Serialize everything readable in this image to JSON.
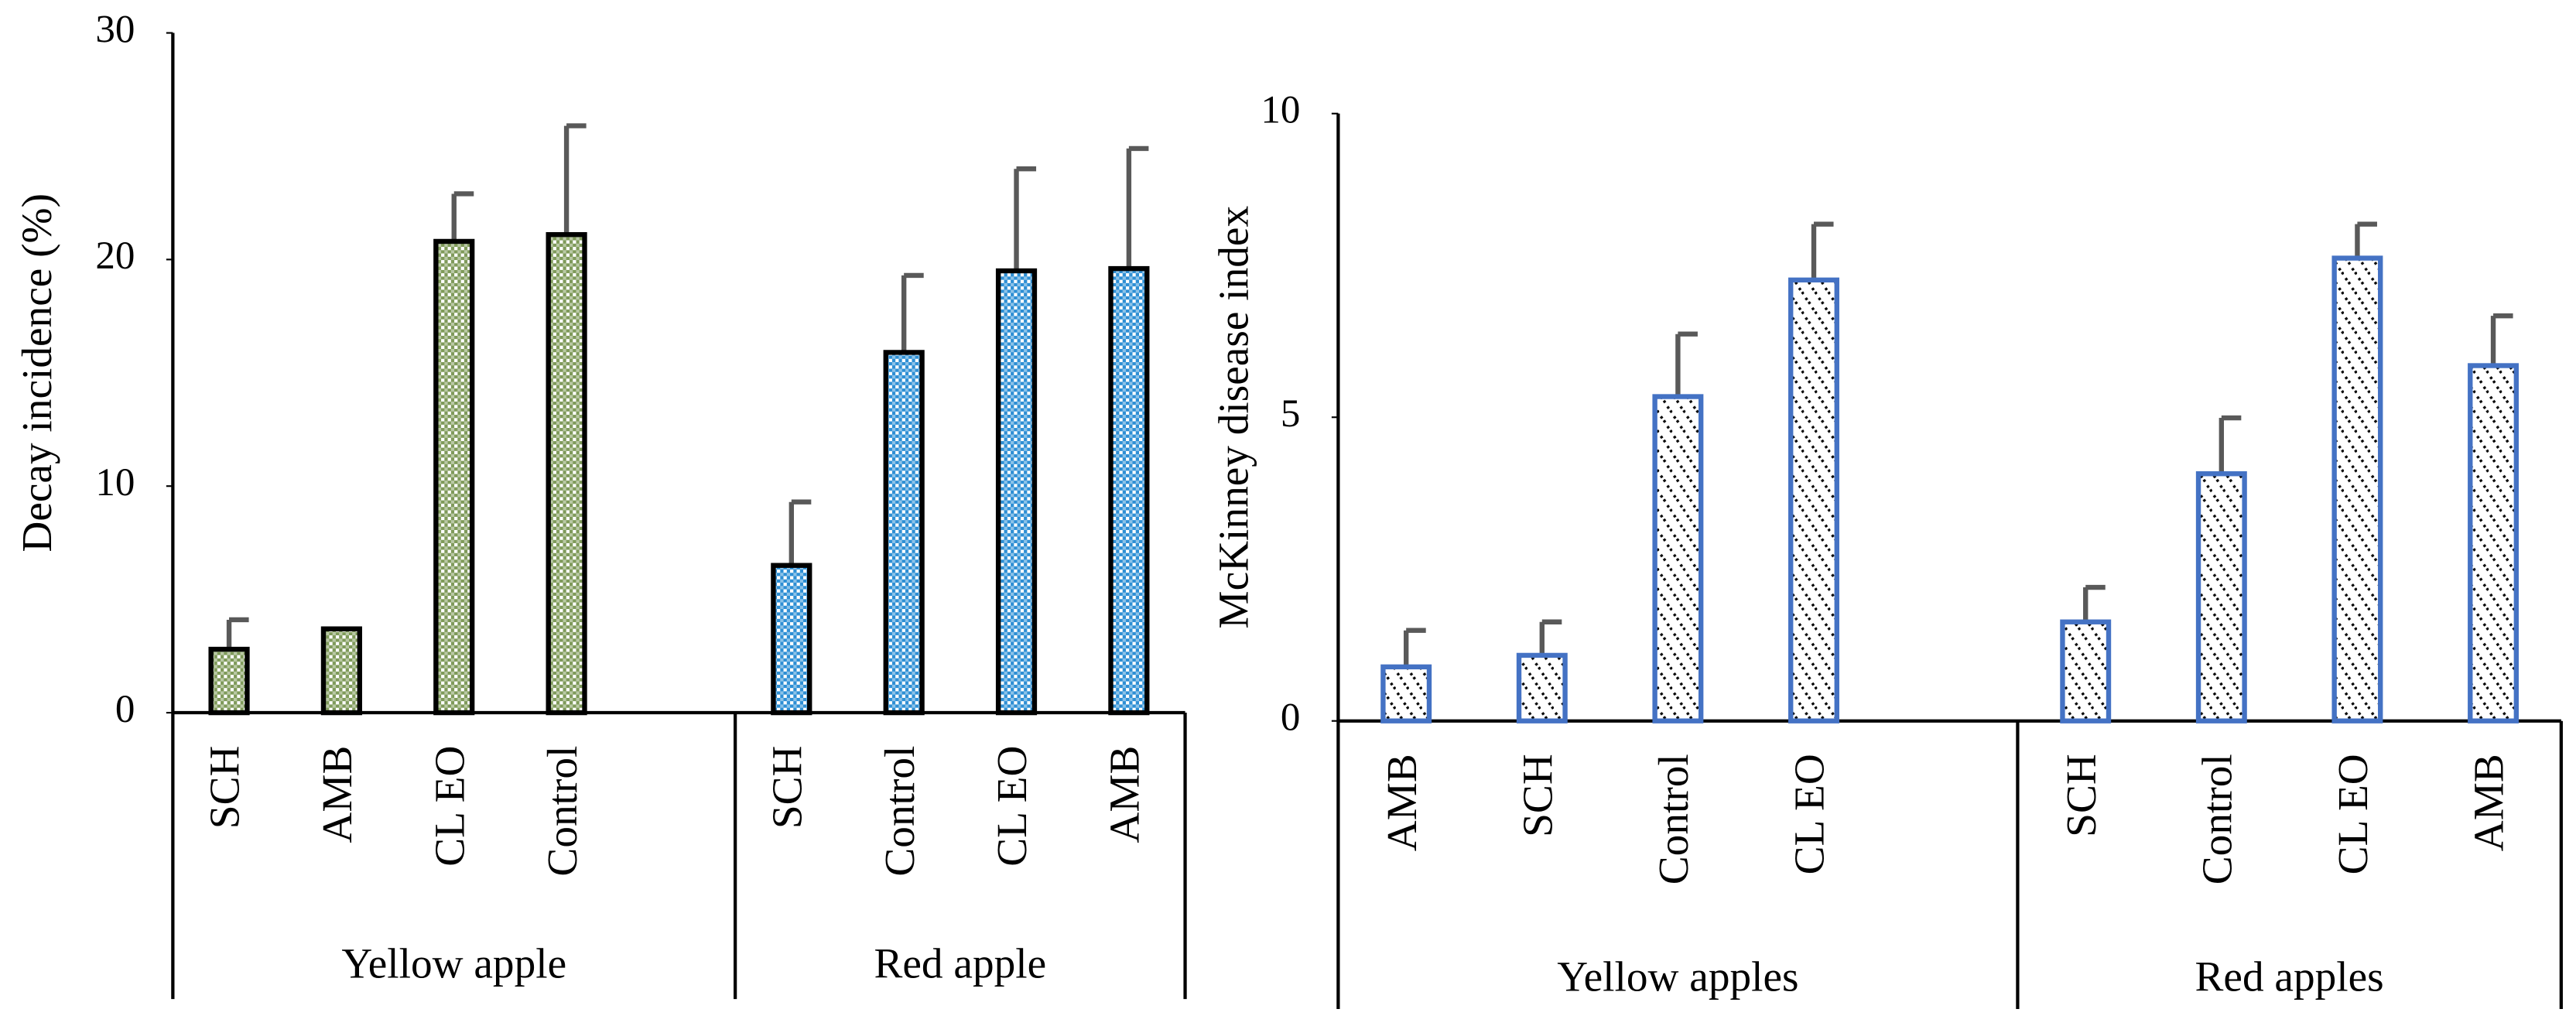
{
  "chart_data": [
    {
      "type": "bar",
      "y_label": "Decay incidence (%)",
      "ylim": [
        0,
        30
      ],
      "yticks": [
        0,
        10,
        20,
        30
      ],
      "hatch": "checker",
      "groups": [
        {
          "name": "Yellow apple",
          "categories": [
            "SCH",
            "AMB",
            "CL EO",
            "Control"
          ],
          "values": [
            2.8,
            3.7,
            20.8,
            21.1
          ],
          "errors": [
            1.3,
            0,
            2.1,
            4.8
          ],
          "color": "#7f9a5a",
          "edgecolor": "#000000"
        },
        {
          "name": "Red apple",
          "categories": [
            "SCH",
            "Control",
            "CL EO",
            "AMB"
          ],
          "values": [
            6.5,
            15.9,
            19.5,
            19.6
          ],
          "errors": [
            2.8,
            3.4,
            4.5,
            5.3
          ],
          "color": "#2e8fd4",
          "edgecolor": "#000000"
        }
      ],
      "error_color": "#595959"
    },
    {
      "type": "bar",
      "y_label": "McKinney disease index",
      "ylim": [
        0,
        10
      ],
      "yticks": [
        0,
        5,
        10
      ],
      "hatch": "dash",
      "groups": [
        {
          "name": "Yellow apples",
          "categories": [
            "AMB",
            "SCH",
            "Control",
            "CL EO"
          ],
          "values": [
            0.89,
            1.08,
            5.34,
            7.26
          ],
          "errors": [
            0.6,
            0.55,
            1.03,
            0.92
          ],
          "color": "#000000",
          "edgecolor": "#4472c4"
        },
        {
          "name": "Red apples",
          "categories": [
            "SCH",
            "Control",
            "CL EO",
            "AMB"
          ],
          "values": [
            1.63,
            4.07,
            7.62,
            5.85
          ],
          "errors": [
            0.57,
            0.92,
            0.56,
            0.82
          ],
          "color": "#000000",
          "edgecolor": "#4472c4"
        }
      ],
      "error_color": "#595959"
    }
  ]
}
